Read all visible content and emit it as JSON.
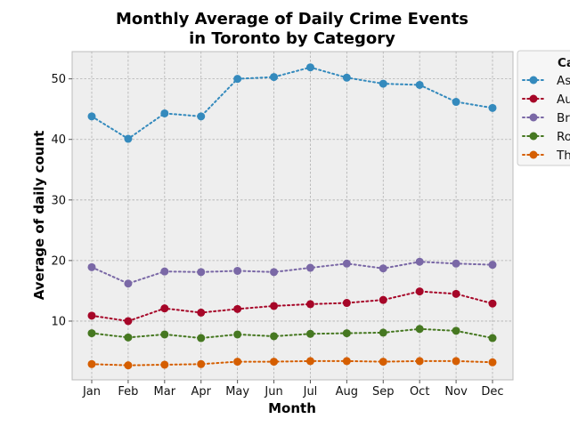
{
  "chart_data": {
    "type": "line",
    "title_line1": "Monthly Average of Daily Crime Events",
    "title_line2": "in Toronto by Category",
    "xlabel": "Month",
    "ylabel": "Average of daily count",
    "categories": [
      "Jan",
      "Feb",
      "Mar",
      "Apr",
      "May",
      "Jun",
      "Jul",
      "Aug",
      "Sep",
      "Oct",
      "Nov",
      "Dec"
    ],
    "ylim": [
      0.3,
      54.5
    ],
    "yticks": [
      10,
      20,
      30,
      40,
      50
    ],
    "grid": true,
    "legend_position": "upper-right, partially clipped",
    "legend_title": "Ca",
    "series": [
      {
        "name": "As",
        "color": "#348ABD",
        "values": [
          43.8,
          40.1,
          44.3,
          43.8,
          50.0,
          50.3,
          51.9,
          50.2,
          49.2,
          49.0,
          46.2,
          45.2
        ]
      },
      {
        "name": "Au",
        "color": "#A60628",
        "values": [
          10.9,
          10.0,
          12.1,
          11.4,
          12.0,
          12.5,
          12.8,
          13.0,
          13.5,
          14.9,
          14.5,
          12.9
        ]
      },
      {
        "name": "Br",
        "color": "#7A68A6",
        "values": [
          18.9,
          16.2,
          18.2,
          18.1,
          18.3,
          18.1,
          18.8,
          19.5,
          18.7,
          19.8,
          19.5,
          19.3
        ]
      },
      {
        "name": "Ro",
        "color": "#467821",
        "values": [
          8.0,
          7.3,
          7.8,
          7.2,
          7.8,
          7.5,
          7.9,
          8.0,
          8.1,
          8.7,
          8.4,
          7.2
        ]
      },
      {
        "name": "Th",
        "color": "#D55E00",
        "values": [
          2.9,
          2.7,
          2.8,
          2.9,
          3.3,
          3.3,
          3.4,
          3.4,
          3.3,
          3.4,
          3.4,
          3.2
        ]
      }
    ]
  }
}
